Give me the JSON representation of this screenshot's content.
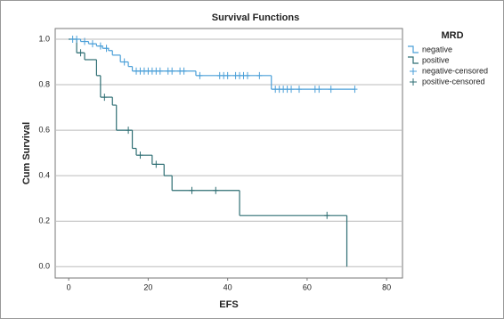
{
  "chart_data": {
    "type": "km",
    "title": "Survival Functions",
    "x_label": "EFS",
    "y_label": "Cum Survival",
    "legend_title": "MRD",
    "xlim": [
      -3.4,
      84
    ],
    "ylim": [
      -0.05,
      1.047
    ],
    "xticks": [
      0,
      20,
      40,
      60,
      80
    ],
    "yticks": [
      {
        "value": 0,
        "label": "0.0"
      },
      0.2,
      0.4,
      0.6,
      0.8,
      {
        "value": 1,
        "label": "1.0"
      }
    ],
    "grid": true,
    "series": [
      {
        "name": "negative",
        "color": "#4a9fd8",
        "style": "step",
        "x": [
          0,
          3,
          5,
          7,
          8.5,
          10,
          11,
          13,
          15,
          16,
          32,
          51,
          72
        ],
        "values": [
          1.0,
          0.99,
          0.98,
          0.97,
          0.96,
          0.95,
          0.93,
          0.9,
          0.88,
          0.86,
          0.84,
          0.78,
          0.78
        ]
      },
      {
        "name": "positive",
        "color": "#2e6e73",
        "style": "step",
        "x": [
          0,
          2,
          4,
          7,
          8,
          11,
          12,
          16,
          17,
          21,
          24,
          26,
          43,
          70
        ],
        "values": [
          1.0,
          0.94,
          0.91,
          0.84,
          0.745,
          0.71,
          0.6,
          0.52,
          0.49,
          0.45,
          0.4,
          0.335,
          0.225,
          0.0
        ]
      },
      {
        "name": "negative-censored",
        "color": "#4a9fd8",
        "style": "censored",
        "x": [
          1,
          2,
          4,
          6,
          8,
          9.5,
          14,
          17,
          18,
          19,
          20,
          21,
          22,
          23,
          25,
          26,
          28,
          29,
          33,
          38,
          39,
          40,
          42,
          43,
          44,
          45,
          48,
          52,
          53,
          54,
          55,
          56,
          58,
          62,
          63,
          66,
          72
        ],
        "values": [
          1.0,
          1.0,
          0.99,
          0.98,
          0.97,
          0.96,
          0.9,
          0.86,
          0.86,
          0.86,
          0.86,
          0.86,
          0.86,
          0.86,
          0.86,
          0.86,
          0.86,
          0.86,
          0.84,
          0.84,
          0.84,
          0.84,
          0.84,
          0.84,
          0.84,
          0.84,
          0.84,
          0.78,
          0.78,
          0.78,
          0.78,
          0.78,
          0.78,
          0.78,
          0.78,
          0.78,
          0.78
        ]
      },
      {
        "name": "positive-censored",
        "color": "#2e6e73",
        "style": "censored",
        "x": [
          3,
          9,
          15,
          18,
          22,
          31,
          37,
          65
        ],
        "values": [
          0.94,
          0.745,
          0.6,
          0.49,
          0.45,
          0.335,
          0.335,
          0.225
        ]
      }
    ]
  }
}
